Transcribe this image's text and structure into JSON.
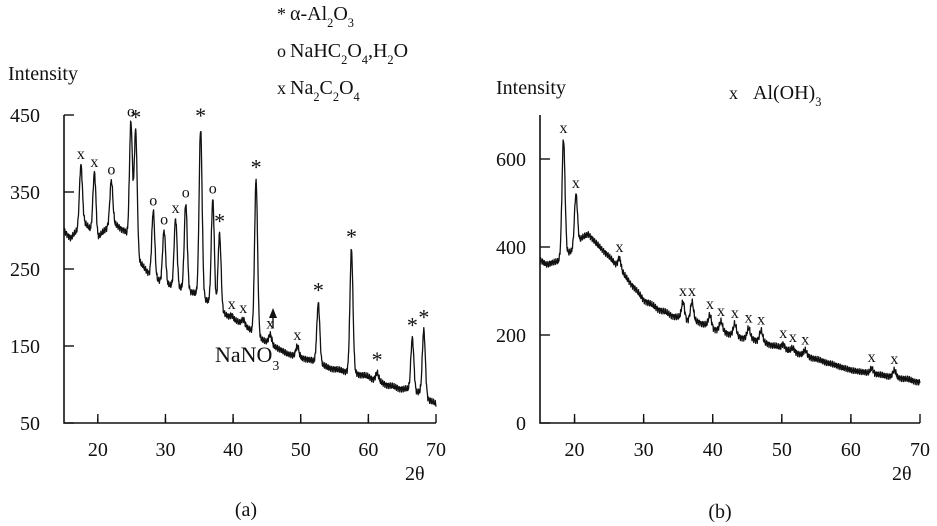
{
  "chart_data": [
    {
      "type": "line",
      "panel_label": "(a)",
      "title": "",
      "xlabel": "2θ",
      "ylabel": "Intensity",
      "xlim": [
        15,
        70
      ],
      "ylim": [
        50,
        450
      ],
      "x_ticks": [
        20,
        30,
        40,
        50,
        60,
        70
      ],
      "y_ticks": [
        50,
        150,
        250,
        350,
        450
      ],
      "grid": false,
      "legend_position": "top",
      "legend": [
        {
          "marker": "*",
          "label": "α-Al2O3",
          "parts": [
            [
              "α-Al",
              ""
            ],
            [
              "2",
              "sub"
            ],
            [
              "O",
              ""
            ],
            [
              "3",
              "sub"
            ]
          ]
        },
        {
          "marker": "o",
          "label": "NaHC2O4,H2O",
          "parts": [
            [
              "NaHC",
              ""
            ],
            [
              "2",
              "sub"
            ],
            [
              "O",
              ""
            ],
            [
              "4",
              "sub"
            ],
            [
              ",H",
              ""
            ],
            [
              "2",
              "sub"
            ],
            [
              "O",
              ""
            ]
          ]
        },
        {
          "marker": "x",
          "label": "Na2C2O4",
          "parts": [
            [
              "Na",
              ""
            ],
            [
              "2",
              "sub"
            ],
            [
              "C",
              ""
            ],
            [
              "2",
              "sub"
            ],
            [
              "O",
              ""
            ],
            [
              "4",
              "sub"
            ]
          ]
        }
      ],
      "annotation": {
        "label": "NaNO3",
        "parts": [
          [
            "NaNO",
            ""
          ],
          [
            "3",
            "sub"
          ]
        ],
        "x": 29.5,
        "y": 255
      },
      "baseline": [
        [
          15,
          300
        ],
        [
          16,
          290
        ],
        [
          18,
          310
        ],
        [
          20,
          290
        ],
        [
          22,
          310
        ],
        [
          24,
          300
        ],
        [
          26,
          260
        ],
        [
          28,
          240
        ],
        [
          30,
          230
        ],
        [
          32,
          225
        ],
        [
          34,
          220
        ],
        [
          36,
          210
        ],
        [
          38,
          195
        ],
        [
          40,
          185
        ],
        [
          42,
          175
        ],
        [
          44,
          160
        ],
        [
          46,
          150
        ],
        [
          48,
          140
        ],
        [
          50,
          135
        ],
        [
          52,
          130
        ],
        [
          54,
          122
        ],
        [
          56,
          118
        ],
        [
          58,
          115
        ],
        [
          60,
          110
        ],
        [
          62,
          102
        ],
        [
          64,
          96
        ],
        [
          66,
          93
        ],
        [
          68,
          88
        ],
        [
          69,
          80
        ],
        [
          70,
          74
        ]
      ],
      "peaks": [
        {
          "x": 17.5,
          "y": 385,
          "marker": "x"
        },
        {
          "x": 19.5,
          "y": 375,
          "marker": "x"
        },
        {
          "x": 22.0,
          "y": 365,
          "marker": "o"
        },
        {
          "x": 24.9,
          "y": 440,
          "marker": "o"
        },
        {
          "x": 25.6,
          "y": 430,
          "marker": "*"
        },
        {
          "x": 28.2,
          "y": 325,
          "marker": "o"
        },
        {
          "x": 29.8,
          "y": 300,
          "marker": "o"
        },
        {
          "x": 31.5,
          "y": 315,
          "marker": "x"
        },
        {
          "x": 33.0,
          "y": 335,
          "marker": "o"
        },
        {
          "x": 35.2,
          "y": 432,
          "marker": "*"
        },
        {
          "x": 37.0,
          "y": 340,
          "marker": "o"
        },
        {
          "x": 38.0,
          "y": 295,
          "marker": "*"
        },
        {
          "x": 39.8,
          "y": 190,
          "marker": "x"
        },
        {
          "x": 41.5,
          "y": 185,
          "marker": "x"
        },
        {
          "x": 43.4,
          "y": 365,
          "marker": "*"
        },
        {
          "x": 45.5,
          "y": 165,
          "marker": "x"
        },
        {
          "x": 49.5,
          "y": 150,
          "marker": "x"
        },
        {
          "x": 52.6,
          "y": 205,
          "marker": "*"
        },
        {
          "x": 57.5,
          "y": 275,
          "marker": "*"
        },
        {
          "x": 61.3,
          "y": 115,
          "marker": "*"
        },
        {
          "x": 66.5,
          "y": 160,
          "marker": "*"
        },
        {
          "x": 68.2,
          "y": 170,
          "marker": "*"
        }
      ]
    },
    {
      "type": "line",
      "panel_label": "(b)",
      "title": "",
      "xlabel": "2θ",
      "ylabel": "Intensity",
      "xlim": [
        15,
        70
      ],
      "ylim": [
        0,
        700
      ],
      "x_ticks": [
        20,
        30,
        40,
        50,
        60,
        70
      ],
      "y_ticks": [
        0,
        200,
        400,
        600
      ],
      "grid": false,
      "legend_position": "top-right",
      "legend": [
        {
          "marker": "x",
          "label": "Al(OH)3",
          "parts": [
            [
              "Al(OH)",
              ""
            ],
            [
              "3",
              "sub"
            ]
          ]
        }
      ],
      "baseline": [
        [
          15,
          370
        ],
        [
          16,
          360
        ],
        [
          17,
          365
        ],
        [
          18,
          370
        ],
        [
          19,
          385
        ],
        [
          20,
          395
        ],
        [
          21,
          420
        ],
        [
          22,
          430
        ],
        [
          23,
          410
        ],
        [
          24,
          395
        ],
        [
          26,
          360
        ],
        [
          28,
          320
        ],
        [
          30,
          280
        ],
        [
          32,
          260
        ],
        [
          34,
          245
        ],
        [
          36,
          235
        ],
        [
          38,
          230
        ],
        [
          40,
          215
        ],
        [
          42,
          205
        ],
        [
          44,
          195
        ],
        [
          46,
          190
        ],
        [
          48,
          180
        ],
        [
          50,
          170
        ],
        [
          52,
          160
        ],
        [
          54,
          150
        ],
        [
          56,
          140
        ],
        [
          58,
          130
        ],
        [
          60,
          120
        ],
        [
          62,
          115
        ],
        [
          64,
          110
        ],
        [
          66,
          105
        ],
        [
          68,
          100
        ],
        [
          70,
          92
        ]
      ],
      "peaks": [
        {
          "x": 18.4,
          "y": 645,
          "marker": "x"
        },
        {
          "x": 20.2,
          "y": 520,
          "marker": "x"
        },
        {
          "x": 26.5,
          "y": 375,
          "marker": "x"
        },
        {
          "x": 35.7,
          "y": 275,
          "marker": "x"
        },
        {
          "x": 37.0,
          "y": 275,
          "marker": "x"
        },
        {
          "x": 39.6,
          "y": 245,
          "marker": "x"
        },
        {
          "x": 41.2,
          "y": 230,
          "marker": "x"
        },
        {
          "x": 43.2,
          "y": 225,
          "marker": "x"
        },
        {
          "x": 45.2,
          "y": 215,
          "marker": "x"
        },
        {
          "x": 47.0,
          "y": 210,
          "marker": "x"
        },
        {
          "x": 50.2,
          "y": 180,
          "marker": "x"
        },
        {
          "x": 51.6,
          "y": 170,
          "marker": "x"
        },
        {
          "x": 53.4,
          "y": 165,
          "marker": "x"
        },
        {
          "x": 63.0,
          "y": 125,
          "marker": "x"
        },
        {
          "x": 66.3,
          "y": 120,
          "marker": "x"
        }
      ]
    }
  ]
}
